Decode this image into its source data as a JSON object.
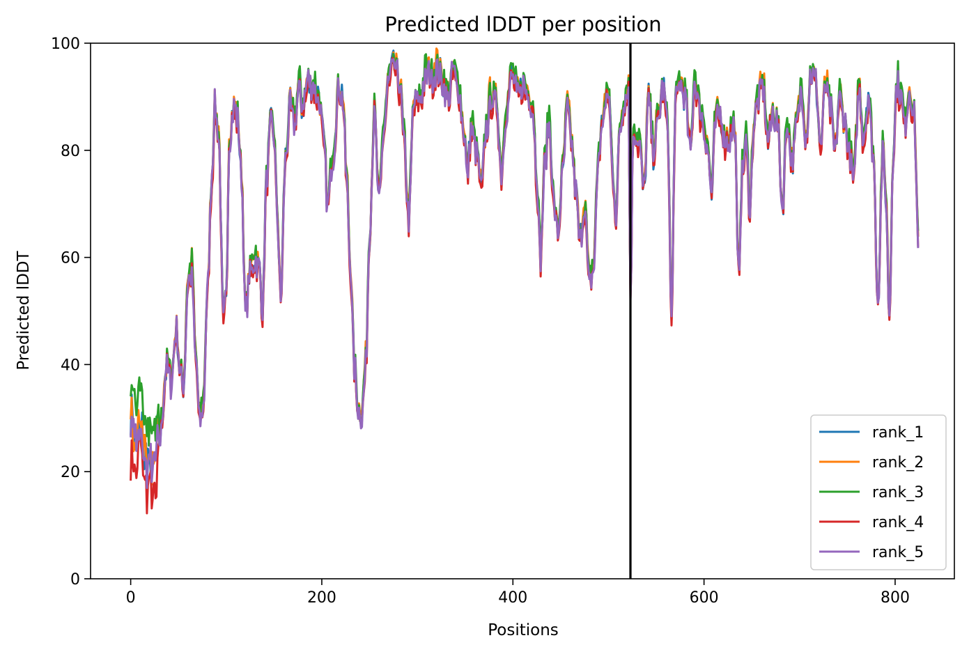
{
  "chart_data": {
    "type": "line",
    "title": "Predicted lDDT per position",
    "xlabel": "Positions",
    "ylabel": "Predicted lDDT",
    "xlim": [
      -42,
      862
    ],
    "ylim": [
      0,
      100
    ],
    "xticks": [
      0,
      200,
      400,
      600,
      800
    ],
    "yticks": [
      0,
      20,
      40,
      60,
      80,
      100
    ],
    "vline_x": 523,
    "grid": false,
    "legend_position": "lower-right",
    "n_positions": 825,
    "series_colors": [
      "#1f77b4",
      "#ff7f0e",
      "#2ca02c",
      "#d62728",
      "#9467bd"
    ],
    "series": [
      {
        "name": "rank_1",
        "offset": 0.0,
        "seed": 11
      },
      {
        "name": "rank_2",
        "offset": 0.5,
        "seed": 23
      },
      {
        "name": "rank_3",
        "offset": 0.8,
        "seed": 37
      },
      {
        "name": "rank_4",
        "offset": -0.8,
        "seed": 41
      },
      {
        "name": "rank_5",
        "offset": -0.3,
        "seed": 53
      }
    ],
    "profile": [
      [
        0,
        30
      ],
      [
        5,
        27
      ],
      [
        10,
        29
      ],
      [
        15,
        23
      ],
      [
        20,
        21
      ],
      [
        25,
        22
      ],
      [
        30,
        26
      ],
      [
        38,
        40
      ],
      [
        42,
        37
      ],
      [
        48,
        47
      ],
      [
        52,
        38
      ],
      [
        55,
        36
      ],
      [
        60,
        56
      ],
      [
        64,
        58
      ],
      [
        68,
        42
      ],
      [
        72,
        30
      ],
      [
        76,
        32
      ],
      [
        80,
        52
      ],
      [
        85,
        75
      ],
      [
        88,
        88
      ],
      [
        92,
        83
      ],
      [
        97,
        47
      ],
      [
        100,
        52
      ],
      [
        103,
        82
      ],
      [
        108,
        88
      ],
      [
        112,
        86
      ],
      [
        116,
        75
      ],
      [
        120,
        50
      ],
      [
        125,
        57
      ],
      [
        130,
        60
      ],
      [
        135,
        58
      ],
      [
        138,
        50
      ],
      [
        142,
        74
      ],
      [
        147,
        85
      ],
      [
        150,
        83
      ],
      [
        153,
        70
      ],
      [
        157,
        52
      ],
      [
        162,
        78
      ],
      [
        167,
        88
      ],
      [
        172,
        86
      ],
      [
        176,
        92
      ],
      [
        180,
        88
      ],
      [
        186,
        93
      ],
      [
        192,
        92
      ],
      [
        197,
        90
      ],
      [
        203,
        80
      ],
      [
        206,
        70
      ],
      [
        212,
        80
      ],
      [
        218,
        92
      ],
      [
        222,
        90
      ],
      [
        226,
        75
      ],
      [
        230,
        58
      ],
      [
        234,
        40
      ],
      [
        238,
        32
      ],
      [
        242,
        31
      ],
      [
        246,
        40
      ],
      [
        250,
        65
      ],
      [
        255,
        87
      ],
      [
        260,
        70
      ],
      [
        265,
        85
      ],
      [
        270,
        93
      ],
      [
        276,
        96
      ],
      [
        282,
        92
      ],
      [
        286,
        82
      ],
      [
        291,
        67
      ],
      [
        296,
        88
      ],
      [
        303,
        90
      ],
      [
        310,
        95
      ],
      [
        316,
        94
      ],
      [
        320,
        96
      ],
      [
        326,
        93
      ],
      [
        333,
        90
      ],
      [
        338,
        95
      ],
      [
        343,
        92
      ],
      [
        349,
        84
      ],
      [
        352,
        76
      ],
      [
        357,
        84
      ],
      [
        362,
        80
      ],
      [
        367,
        73
      ],
      [
        372,
        84
      ],
      [
        377,
        90
      ],
      [
        383,
        89
      ],
      [
        388,
        76
      ],
      [
        393,
        88
      ],
      [
        399,
        94
      ],
      [
        405,
        90
      ],
      [
        410,
        92
      ],
      [
        416,
        91
      ],
      [
        421,
        88
      ],
      [
        425,
        75
      ],
      [
        429,
        60
      ],
      [
        433,
        77
      ],
      [
        438,
        85
      ],
      [
        443,
        70
      ],
      [
        447,
        64
      ],
      [
        452,
        76
      ],
      [
        457,
        88
      ],
      [
        462,
        80
      ],
      [
        466,
        72
      ],
      [
        470,
        63
      ],
      [
        475,
        70
      ],
      [
        480,
        55
      ],
      [
        484,
        58
      ],
      [
        490,
        80
      ],
      [
        496,
        88
      ],
      [
        500,
        90
      ],
      [
        505,
        75
      ],
      [
        508,
        68
      ],
      [
        512,
        85
      ],
      [
        517,
        90
      ],
      [
        521,
        92
      ],
      [
        523,
        53
      ],
      [
        526,
        84
      ],
      [
        532,
        82
      ],
      [
        537,
        72
      ],
      [
        542,
        90
      ],
      [
        547,
        80
      ],
      [
        552,
        86
      ],
      [
        557,
        92
      ],
      [
        562,
        85
      ],
      [
        566,
        48
      ],
      [
        570,
        88
      ],
      [
        575,
        93
      ],
      [
        580,
        90
      ],
      [
        586,
        80
      ],
      [
        590,
        93
      ],
      [
        597,
        87
      ],
      [
        603,
        82
      ],
      [
        608,
        72
      ],
      [
        612,
        86
      ],
      [
        617,
        87
      ],
      [
        622,
        82
      ],
      [
        627,
        83
      ],
      [
        632,
        85
      ],
      [
        636,
        57
      ],
      [
        640,
        76
      ],
      [
        644,
        82
      ],
      [
        648,
        70
      ],
      [
        652,
        85
      ],
      [
        657,
        90
      ],
      [
        662,
        92
      ],
      [
        667,
        82
      ],
      [
        672,
        87
      ],
      [
        677,
        85
      ],
      [
        682,
        70
      ],
      [
        687,
        86
      ],
      [
        692,
        78
      ],
      [
        697,
        85
      ],
      [
        702,
        92
      ],
      [
        707,
        83
      ],
      [
        712,
        95
      ],
      [
        717,
        93
      ],
      [
        722,
        80
      ],
      [
        727,
        92
      ],
      [
        732,
        88
      ],
      [
        737,
        80
      ],
      [
        742,
        90
      ],
      [
        747,
        86
      ],
      [
        752,
        80
      ],
      [
        757,
        75
      ],
      [
        762,
        92
      ],
      [
        767,
        82
      ],
      [
        772,
        90
      ],
      [
        777,
        80
      ],
      [
        782,
        52
      ],
      [
        787,
        80
      ],
      [
        790,
        73
      ],
      [
        794,
        50
      ],
      [
        798,
        80
      ],
      [
        802,
        93
      ],
      [
        806,
        90
      ],
      [
        810,
        85
      ],
      [
        815,
        92
      ],
      [
        820,
        86
      ],
      [
        824,
        65
      ]
    ]
  }
}
